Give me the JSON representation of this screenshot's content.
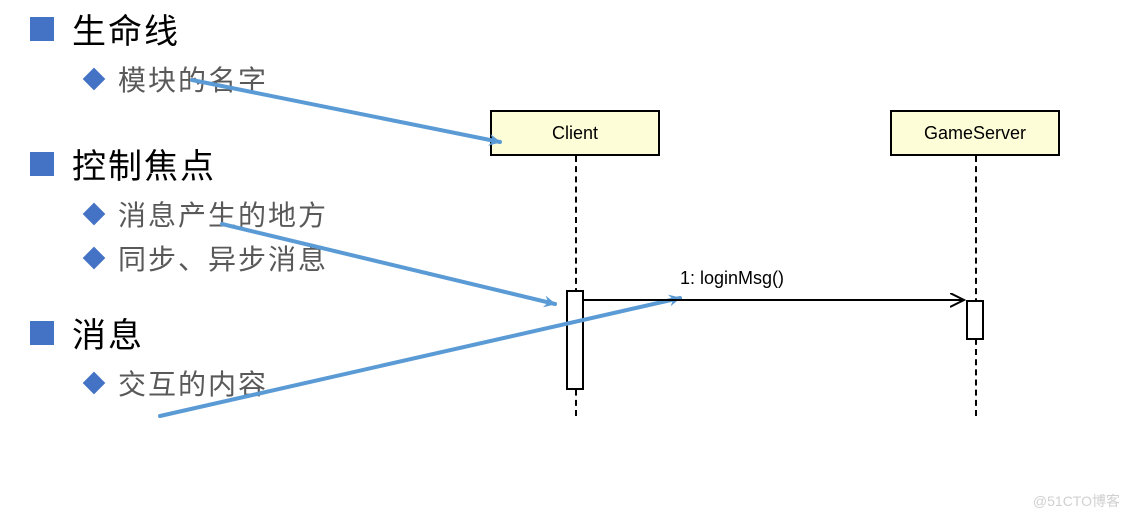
{
  "legend": {
    "bullet_color": "#4472c4",
    "diamond_color": "#4472c4",
    "heading_color": "#000000",
    "sub_color": "#595959",
    "heading_fontsize": 34,
    "sub_fontsize": 28,
    "items": [
      {
        "title": "生命线",
        "subs": [
          "模块的名字"
        ]
      },
      {
        "title": "控制焦点",
        "subs": [
          "消息产生的地方",
          "同步、异步消息"
        ]
      },
      {
        "title": "消息",
        "subs": [
          "交互的内容"
        ]
      }
    ]
  },
  "uml": {
    "lifeline_box_fill": "#fdfdd8",
    "lifeline_box_border": "#000000",
    "lifeline_dash_color": "#000000",
    "activation_fill": "#ffffff",
    "activation_border": "#000000",
    "client": {
      "label": "Client"
    },
    "server": {
      "label": "GameServer"
    },
    "message": {
      "label": "1: loginMsg()",
      "arrow_color": "#000000",
      "stroke_width": 2
    }
  },
  "pointers": {
    "color": "#5b9bd5",
    "stroke_width": 4,
    "arrows": [
      {
        "from": [
          192,
          80
        ],
        "to": [
          500,
          142
        ]
      },
      {
        "from": [
          222,
          224
        ],
        "to": [
          555,
          304
        ]
      },
      {
        "from": [
          160,
          416
        ],
        "to": [
          680,
          298
        ]
      }
    ]
  },
  "watermark": "@51CTO博客"
}
